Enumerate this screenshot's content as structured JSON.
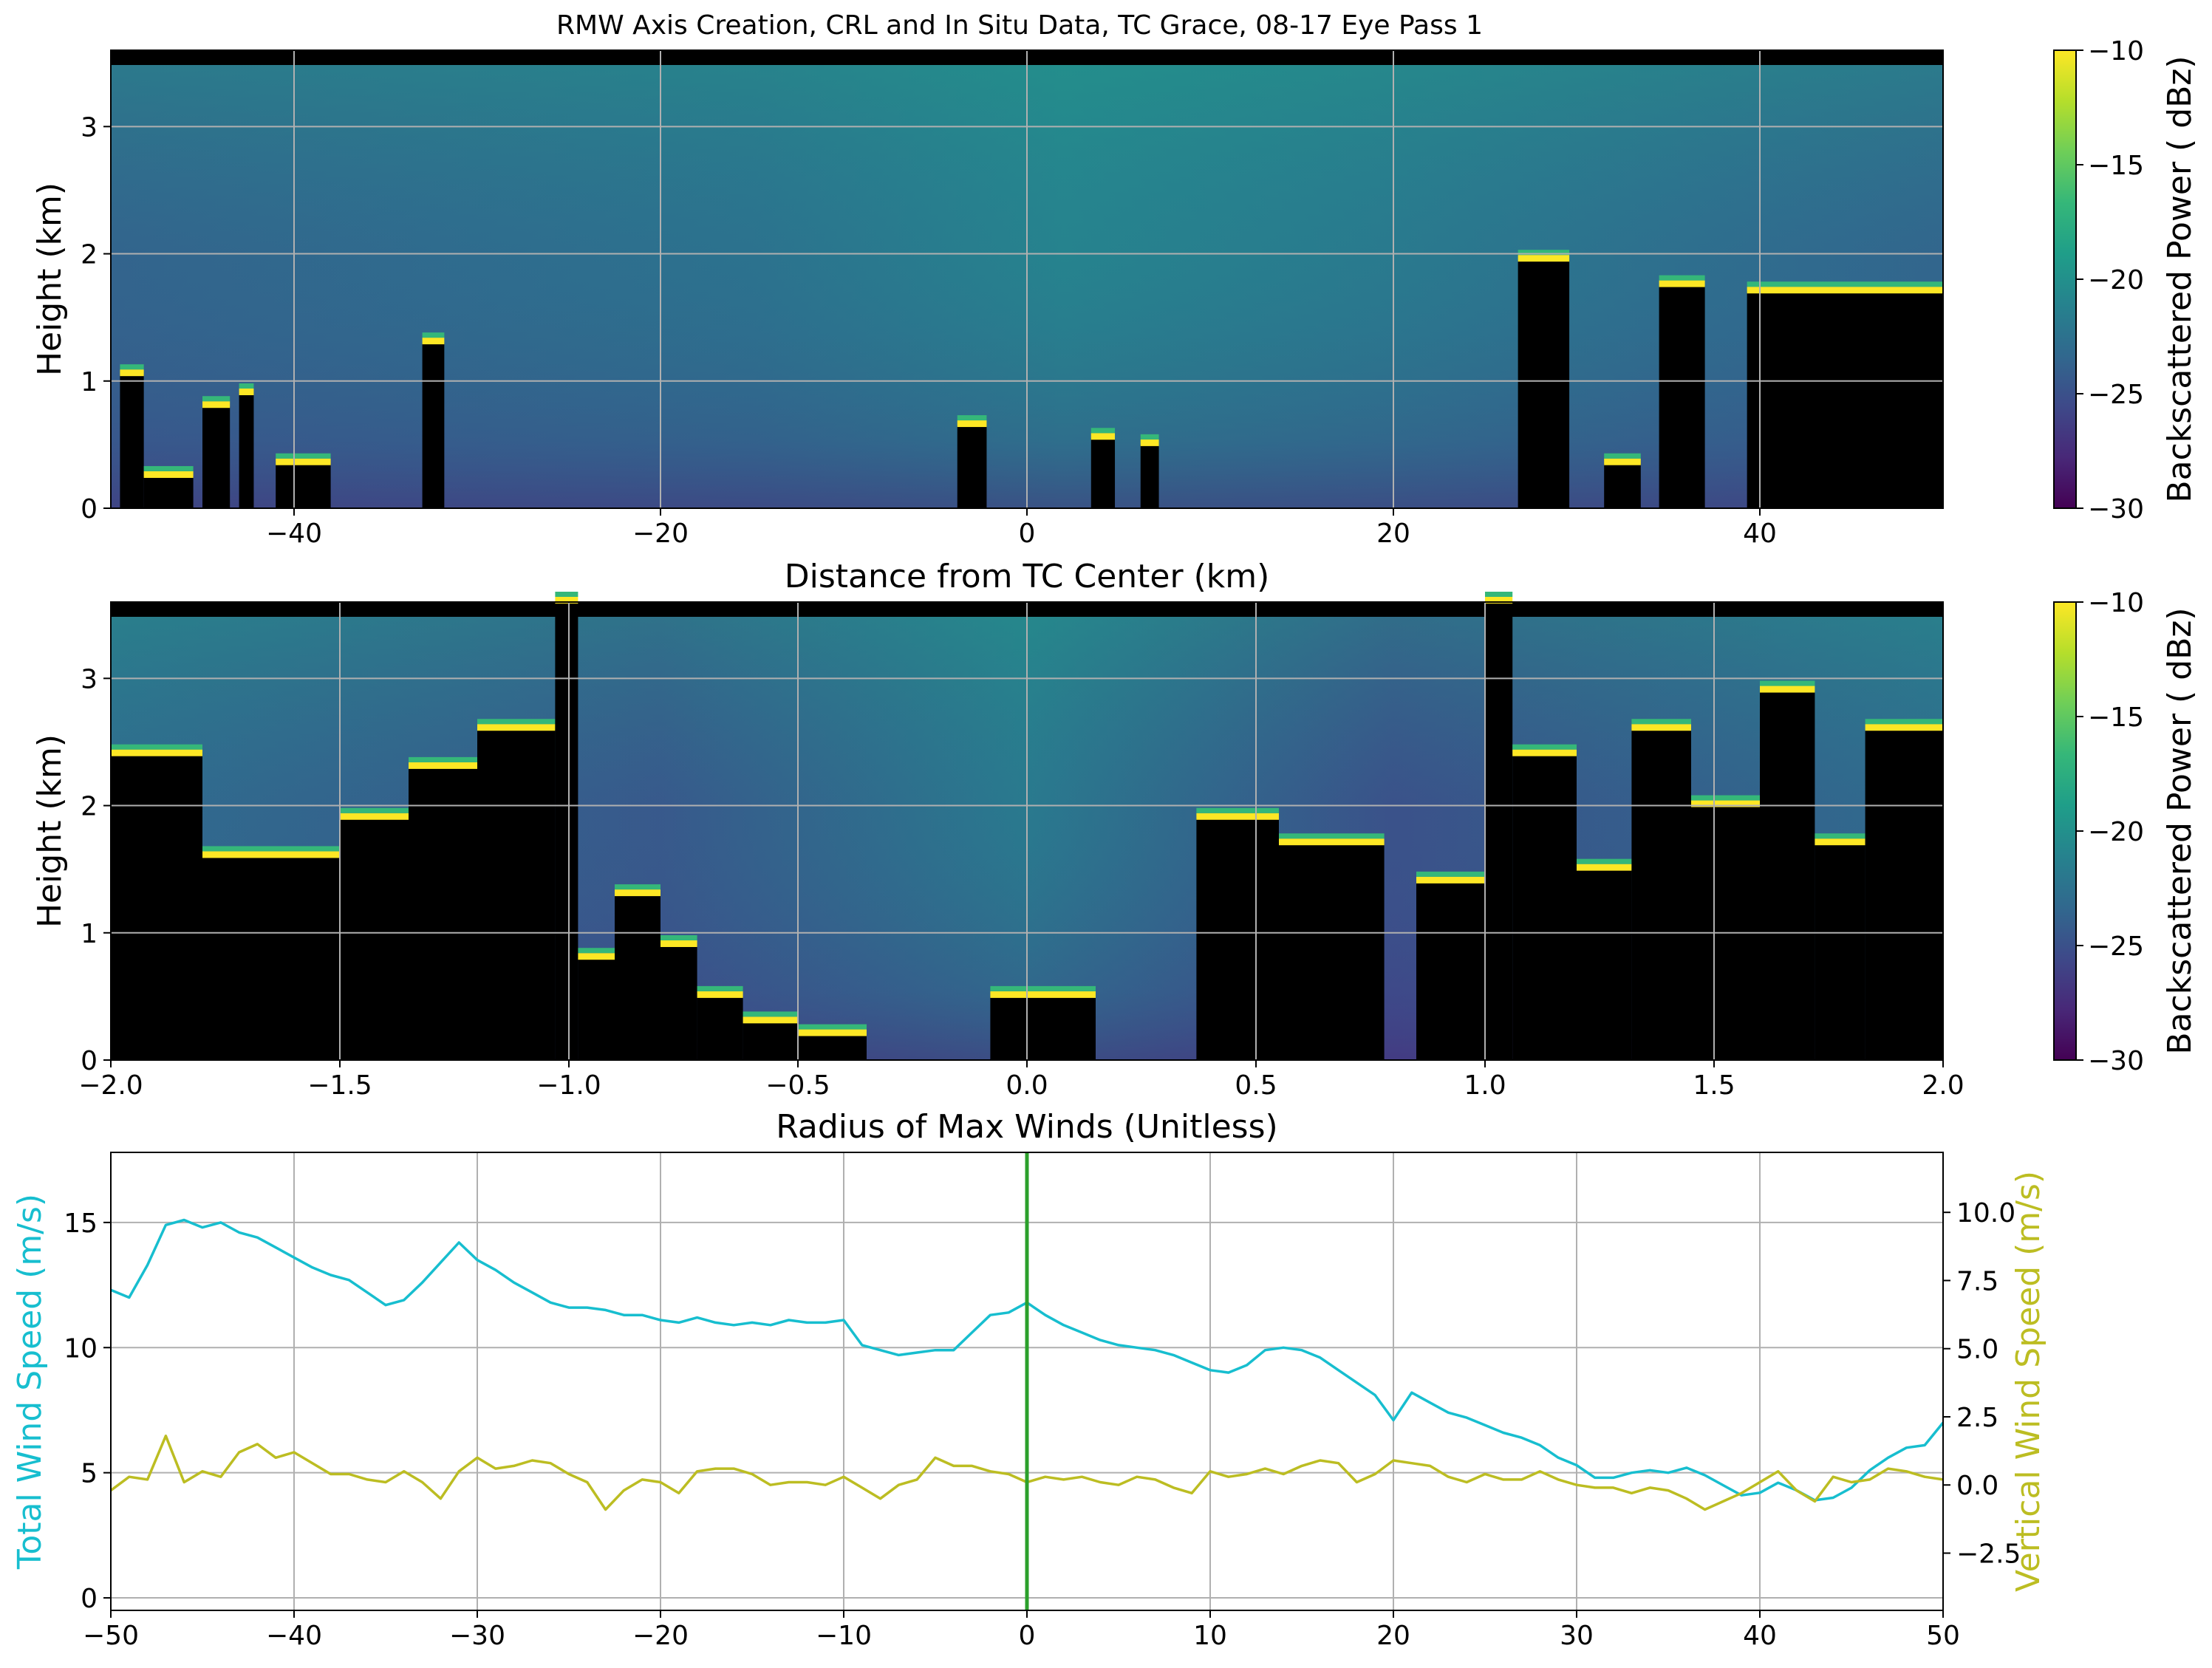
{
  "title": "RMW Axis Creation, CRL and In Situ Data, TC Grace, 08-17 Eye Pass 1",
  "colors": {
    "viridis": [
      "#440154",
      "#482878",
      "#3e4989",
      "#31688e",
      "#26828e",
      "#1f9e89",
      "#35b779",
      "#6ece58",
      "#b5de2b",
      "#fde725"
    ],
    "no_signal": "#000000",
    "total_wind": "#17becf",
    "vertical_wind": "#bcbd22",
    "center_line": "#2ca02c",
    "grid": "#b0b0b0"
  },
  "chart_data": [
    {
      "type": "heatmap",
      "xlabel": "Distance from TC Center (km)",
      "ylabel": "Height (km)",
      "xlim": [
        -50,
        50
      ],
      "ylim": [
        0,
        3.6
      ],
      "x_ticks": [
        -40,
        -20,
        0,
        20,
        40
      ],
      "y_ticks": [
        0,
        1,
        2,
        3
      ],
      "grid": true,
      "colorbar": {
        "label": "Backscattered Power ( dBz)",
        "range": [
          -30,
          -10
        ],
        "ticks": [
          -30,
          -25,
          -20,
          -15,
          -10
        ]
      },
      "blocked_regions": [
        {
          "x": [
            -49.5,
            -48.2
          ],
          "top": 1.05
        },
        {
          "x": [
            -48.2,
            -45.5
          ],
          "top": 0.25
        },
        {
          "x": [
            -45,
            -43.5
          ],
          "top": 0.8
        },
        {
          "x": [
            -43,
            -42.2
          ],
          "top": 0.9
        },
        {
          "x": [
            -41,
            -38
          ],
          "top": 0.35
        },
        {
          "x": [
            -33,
            -31.8
          ],
          "top": 1.3
        },
        {
          "x": [
            -3.8,
            -2.2
          ],
          "top": 0.65
        },
        {
          "x": [
            3.5,
            4.8
          ],
          "top": 0.55
        },
        {
          "x": [
            6.2,
            7.2
          ],
          "top": 0.5
        },
        {
          "x": [
            26.8,
            29.6
          ],
          "top": 1.95
        },
        {
          "x": [
            31.5,
            33.5
          ],
          "top": 0.35
        },
        {
          "x": [
            34.5,
            37
          ],
          "top": 1.75
        },
        {
          "x": [
            39.3,
            50
          ],
          "top": 1.7
        }
      ]
    },
    {
      "type": "heatmap",
      "xlabel": "Radius of Max Winds (Unitless)",
      "ylabel": "Height (km)",
      "xlim": [
        -2,
        2
      ],
      "ylim": [
        0,
        3.6
      ],
      "x_ticks": [
        -2.0,
        -1.5,
        -1.0,
        -0.5,
        0.0,
        0.5,
        1.0,
        1.5,
        2.0
      ],
      "x_tick_labels": [
        "−2.0",
        "−1.5",
        "−1.0",
        "−0.5",
        "0.0",
        "0.5",
        "1.0",
        "1.5",
        "2.0"
      ],
      "y_ticks": [
        0,
        1,
        2,
        3
      ],
      "grid": true,
      "colorbar": {
        "label": "Backscattered Power ( dBz)",
        "range": [
          -30,
          -10
        ],
        "ticks": [
          -30,
          -25,
          -20,
          -15,
          -10
        ]
      },
      "blocked_regions": [
        {
          "x": [
            -2,
            -1.8
          ],
          "top": 2.4
        },
        {
          "x": [
            -1.8,
            -1.5
          ],
          "top": 1.6
        },
        {
          "x": [
            -1.5,
            -1.35
          ],
          "top": 1.9
        },
        {
          "x": [
            -1.35,
            -1.2
          ],
          "top": 2.3
        },
        {
          "x": [
            -1.2,
            -1.03
          ],
          "top": 2.6
        },
        {
          "x": [
            -1.03,
            -0.98
          ],
          "top": 3.6
        },
        {
          "x": [
            -0.98,
            -0.9
          ],
          "top": 0.8
        },
        {
          "x": [
            -0.9,
            -0.8
          ],
          "top": 1.3
        },
        {
          "x": [
            -0.8,
            -0.72
          ],
          "top": 0.9
        },
        {
          "x": [
            -0.72,
            -0.62
          ],
          "top": 0.5
        },
        {
          "x": [
            -0.62,
            -0.5
          ],
          "top": 0.3
        },
        {
          "x": [
            -0.5,
            -0.35
          ],
          "top": 0.2
        },
        {
          "x": [
            -0.08,
            0.15
          ],
          "top": 0.5
        },
        {
          "x": [
            0.37,
            0.55
          ],
          "top": 1.9
        },
        {
          "x": [
            0.55,
            0.78
          ],
          "top": 1.7
        },
        {
          "x": [
            0.85,
            1.0
          ],
          "top": 1.4
        },
        {
          "x": [
            1.0,
            1.06
          ],
          "top": 3.6
        },
        {
          "x": [
            1.06,
            1.2
          ],
          "top": 2.4
        },
        {
          "x": [
            1.2,
            1.32
          ],
          "top": 1.5
        },
        {
          "x": [
            1.32,
            1.45
          ],
          "top": 2.6
        },
        {
          "x": [
            1.45,
            1.6
          ],
          "top": 2.0
        },
        {
          "x": [
            1.6,
            1.72
          ],
          "top": 2.9
        },
        {
          "x": [
            1.72,
            1.83
          ],
          "top": 1.7
        },
        {
          "x": [
            1.83,
            2.0
          ],
          "top": 2.6
        }
      ]
    },
    {
      "type": "line",
      "xlim": [
        -50,
        50
      ],
      "x_ticks": [
        -50,
        -40,
        -30,
        -20,
        -10,
        0,
        10,
        20,
        30,
        40,
        50
      ],
      "x_tick_labels": [
        "−50",
        "−40",
        "−30",
        "−20",
        "−10",
        "0",
        "10",
        "20",
        "30",
        "40",
        "50"
      ],
      "grid": true,
      "left_axis": {
        "label": "Total Wind Speed (m/s)",
        "ylim": [
          -0.5,
          17.8
        ],
        "ticks": [
          0,
          5,
          10,
          15
        ]
      },
      "right_axis": {
        "label": "Vertical Wind Speed (m/s)",
        "ylim": [
          -4.6,
          12.2
        ],
        "ticks": [
          -2.5,
          0.0,
          2.5,
          5.0,
          7.5,
          10.0
        ],
        "tick_labels": [
          "−2.5",
          "0.0",
          "2.5",
          "5.0",
          "7.5",
          "10.0"
        ]
      },
      "x": [
        -50,
        -49,
        -48,
        -47,
        -46,
        -45,
        -44,
        -43,
        -42,
        -41,
        -40,
        -39,
        -38,
        -37,
        -36,
        -35,
        -34,
        -33,
        -32,
        -31,
        -30,
        -29,
        -28,
        -27,
        -26,
        -25,
        -24,
        -23,
        -22,
        -21,
        -20,
        -19,
        -18,
        -17,
        -16,
        -15,
        -14,
        -13,
        -12,
        -11,
        -10,
        -9,
        -8,
        -7,
        -6,
        -5,
        -4,
        -3,
        -2,
        -1,
        0,
        1,
        2,
        3,
        4,
        5,
        6,
        7,
        8,
        9,
        10,
        11,
        12,
        13,
        14,
        15,
        16,
        17,
        18,
        19,
        20,
        21,
        22,
        23,
        24,
        25,
        26,
        27,
        28,
        29,
        30,
        31,
        32,
        33,
        34,
        35,
        36,
        37,
        38,
        39,
        40,
        41,
        42,
        43,
        44,
        45,
        46,
        47,
        48,
        49,
        50
      ],
      "series": [
        {
          "name": "Total Wind Speed (m/s)",
          "axis": "left",
          "values": [
            12.3,
            12.0,
            13.3,
            14.9,
            15.1,
            14.8,
            15.0,
            14.6,
            14.4,
            14.0,
            13.6,
            13.2,
            12.9,
            12.7,
            12.2,
            11.7,
            11.9,
            12.6,
            13.4,
            14.2,
            13.5,
            13.1,
            12.6,
            12.2,
            11.8,
            11.6,
            11.6,
            11.5,
            11.3,
            11.3,
            11.1,
            11.0,
            11.2,
            11.0,
            10.9,
            11.0,
            10.9,
            11.1,
            11.0,
            11.0,
            11.1,
            10.1,
            9.9,
            9.7,
            9.8,
            9.9,
            9.9,
            10.6,
            11.3,
            11.4,
            11.8,
            11.3,
            10.9,
            10.6,
            10.3,
            10.1,
            10.0,
            9.9,
            9.7,
            9.4,
            9.1,
            9.0,
            9.3,
            9.9,
            10.0,
            9.9,
            9.6,
            9.1,
            8.6,
            8.1,
            7.1,
            8.2,
            7.8,
            7.4,
            7.2,
            6.9,
            6.6,
            6.4,
            6.1,
            5.6,
            5.3,
            4.8,
            4.8,
            5.0,
            5.1,
            5.0,
            5.2,
            4.9,
            4.5,
            4.1,
            4.2,
            4.6,
            4.3,
            3.9,
            4.0,
            4.4,
            5.1,
            5.6,
            6.0,
            6.1,
            7.0
          ]
        },
        {
          "name": "Vertical Wind Speed (m/s)",
          "axis": "right",
          "values": [
            -0.2,
            0.3,
            0.2,
            1.8,
            0.1,
            0.5,
            0.3,
            1.2,
            1.5,
            1.0,
            1.2,
            0.8,
            0.4,
            0.4,
            0.2,
            0.1,
            0.5,
            0.1,
            -0.5,
            0.5,
            1.0,
            0.6,
            0.7,
            0.9,
            0.8,
            0.4,
            0.1,
            -0.9,
            -0.2,
            0.2,
            0.1,
            -0.3,
            0.5,
            0.6,
            0.6,
            0.4,
            0.0,
            0.1,
            0.1,
            0.0,
            0.3,
            -0.1,
            -0.5,
            0.0,
            0.2,
            1.0,
            0.7,
            0.7,
            0.5,
            0.4,
            0.1,
            0.3,
            0.2,
            0.3,
            0.1,
            0.0,
            0.3,
            0.2,
            -0.1,
            -0.3,
            0.5,
            0.3,
            0.4,
            0.6,
            0.4,
            0.7,
            0.9,
            0.8,
            0.1,
            0.4,
            0.9,
            0.8,
            0.7,
            0.3,
            0.1,
            0.4,
            0.2,
            0.2,
            0.5,
            0.2,
            0.0,
            -0.1,
            -0.1,
            -0.3,
            -0.1,
            -0.2,
            -0.5,
            -0.9,
            -0.6,
            -0.3,
            0.1,
            0.5,
            -0.2,
            -0.6,
            0.3,
            0.1,
            0.2,
            0.6,
            0.5,
            0.3,
            0.2
          ]
        }
      ],
      "center_line_x": 0
    }
  ]
}
